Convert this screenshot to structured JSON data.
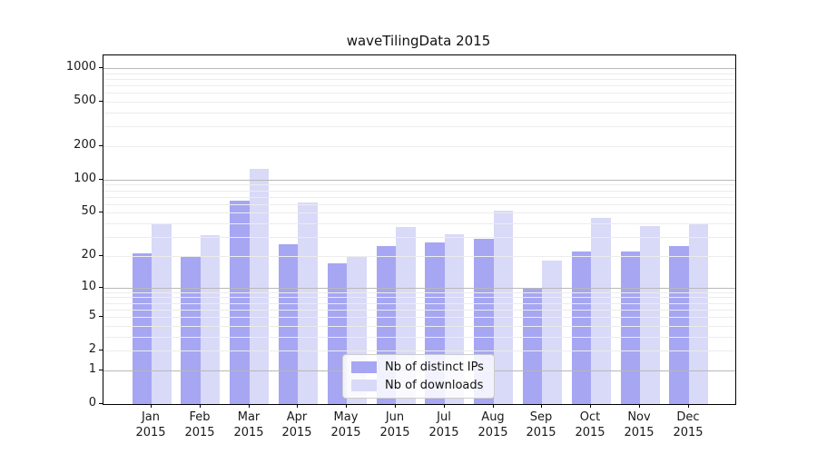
{
  "title": "waveTilingData 2015",
  "chart_data": {
    "type": "bar",
    "title": "waveTilingData 2015",
    "yscale": "symlog-log1p",
    "categories": [
      "Jan",
      "Feb",
      "Mar",
      "Apr",
      "May",
      "Jun",
      "Jul",
      "Aug",
      "Sep",
      "Oct",
      "Nov",
      "Dec"
    ],
    "year_label": "2015",
    "series": [
      {
        "name": "Nb of distinct IPs",
        "color": "#a6a6f3",
        "values": [
          21,
          20,
          64,
          26,
          17,
          25,
          27,
          29,
          10,
          22,
          22,
          25
        ]
      },
      {
        "name": "Nb of downloads",
        "color": "#d9d9f8",
        "values": [
          40,
          31,
          125,
          62,
          20,
          37,
          32,
          52,
          18,
          45,
          38,
          40
        ]
      }
    ],
    "yticks": [
      0,
      1,
      2,
      5,
      10,
      20,
      50,
      100,
      200,
      500,
      1000
    ],
    "ylim": [
      0,
      1300
    ],
    "grid": {
      "major_lines": [
        1,
        10,
        100,
        1000
      ],
      "minor_bases": [
        2,
        3,
        4,
        5,
        6,
        7,
        8,
        9
      ],
      "minor_decades": [
        1,
        10,
        100
      ],
      "major_color": "#b8b8b8",
      "minor_color": "#ececec"
    },
    "legend": {
      "position": "lower-center",
      "entries": [
        "Nb of distinct IPs",
        "Nb of downloads"
      ]
    },
    "xlabel": "",
    "ylabel": ""
  }
}
